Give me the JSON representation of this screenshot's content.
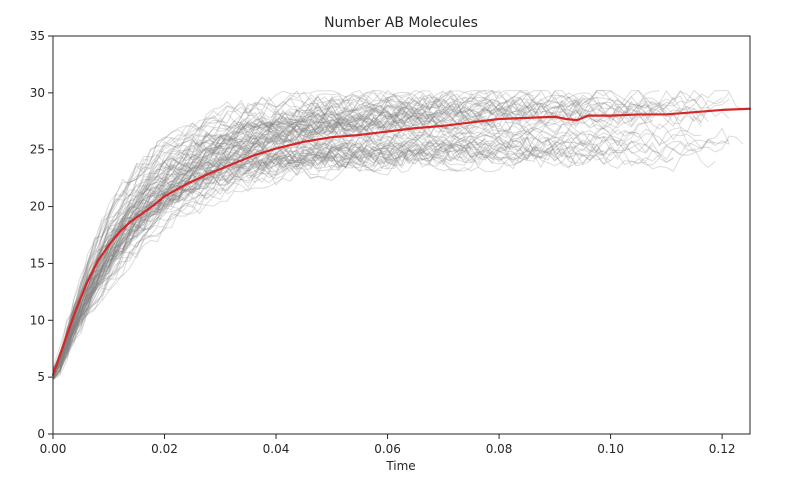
{
  "chart_data": {
    "type": "line",
    "title": "Number AB Molecules",
    "xlabel": "Time",
    "ylabel": "",
    "xlim": [
      0,
      0.125
    ],
    "ylim": [
      0,
      35
    ],
    "x_ticks": [
      0,
      0.02,
      0.04,
      0.06,
      0.08,
      0.1,
      0.12
    ],
    "x_tick_labels": [
      "0.00",
      "0.02",
      "0.04",
      "0.06",
      "0.08",
      "0.10",
      "0.12"
    ],
    "y_ticks": [
      0,
      5,
      10,
      15,
      20,
      25,
      30,
      35
    ],
    "y_tick_labels": [
      "0",
      "5",
      "10",
      "15",
      "20",
      "25",
      "30",
      "35"
    ],
    "grid": false,
    "legend": "none",
    "colors": {
      "mean": "#d62728",
      "trajectories": "#808080"
    },
    "simulation_bundle": {
      "count": 100,
      "x_start": 0,
      "y_start": 5,
      "end_range": [
        0.05,
        0.125
      ],
      "final_value_range": [
        24,
        30
      ],
      "opacity": 0.28
    },
    "series": [
      {
        "x": [
          0,
          0.002,
          0.004,
          0.006,
          0.008,
          0.01,
          0.012,
          0.014,
          0.016,
          0.018,
          0.02,
          0.024,
          0.028,
          0.032,
          0.036,
          0.04,
          0.045,
          0.05,
          0.055,
          0.06,
          0.065,
          0.07,
          0.075,
          0.08,
          0.085,
          0.09,
          0.092,
          0.094,
          0.096,
          0.1,
          0.105,
          0.11,
          0.115,
          0.12,
          0.125
        ],
        "values": [
          5.2,
          8.0,
          10.8,
          13.2,
          15.2,
          16.6,
          17.8,
          18.7,
          19.4,
          20.1,
          20.9,
          22.0,
          22.9,
          23.7,
          24.5,
          25.1,
          25.7,
          26.1,
          26.3,
          26.6,
          26.9,
          27.1,
          27.4,
          27.7,
          27.8,
          27.9,
          27.7,
          27.6,
          28.0,
          28.0,
          28.1,
          28.1,
          28.3,
          28.5,
          28.6
        ]
      }
    ]
  }
}
